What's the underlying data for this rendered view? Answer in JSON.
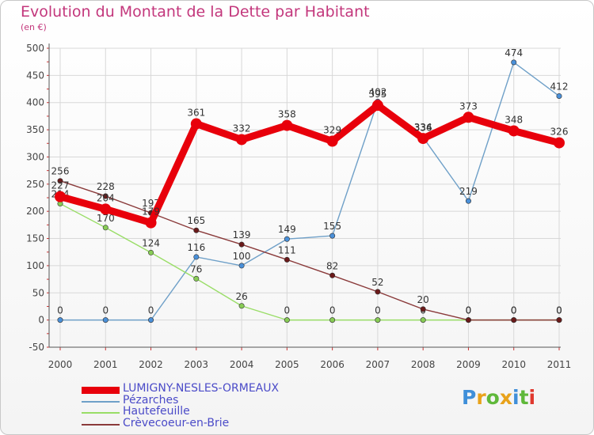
{
  "title": "Evolution du Montant de la Dette par Habitant",
  "unit": "(en €)",
  "logo": "Proxiti",
  "colors": {
    "title": "#c3377c",
    "legend_text": "#4b4bc8",
    "grid": "#d8d8d8",
    "axis": "#555555"
  },
  "chart_data": {
    "type": "line",
    "title": "Evolution du Montant de la Dette par Habitant",
    "ylabel": "(en €)",
    "xlabel": "",
    "categories": [
      "2000",
      "2001",
      "2002",
      "2003",
      "2004",
      "2005",
      "2006",
      "2007",
      "2008",
      "2009",
      "2010",
      "2011"
    ],
    "ylim": [
      -50,
      500
    ],
    "yticks": [
      -50,
      0,
      50,
      100,
      150,
      200,
      250,
      300,
      350,
      400,
      450,
      500
    ],
    "grid": true,
    "legend": "bottom-left",
    "series": [
      {
        "name": "LUMIGNY-NESLES-ORMEAUX",
        "color": "#e8000b",
        "marker": "#e8000b",
        "label_color": "#333333",
        "emphasis": true,
        "values": [
          227,
          204,
          179,
          361,
          332,
          358,
          329,
          395,
          334,
          373,
          348,
          326
        ],
        "labels": [
          "227",
          "204",
          "179",
          "361",
          "332",
          "358",
          "329",
          "395",
          "334",
          "373",
          "348",
          "326"
        ]
      },
      {
        "name": "Pézarches",
        "color": "#6fa0c8",
        "marker": "#4a90d9",
        "label_color": "#333333",
        "emphasis": false,
        "values": [
          0,
          0,
          0,
          116,
          100,
          149,
          155,
          402,
          336,
          219,
          474,
          412
        ],
        "labels": [
          "0",
          "0",
          "0",
          "116",
          "100",
          "149",
          "155",
          "402",
          "336",
          "219",
          "474",
          "412"
        ]
      },
      {
        "name": "Hautefeuille",
        "color": "#99dd66",
        "marker": "#88cc55",
        "label_color": "#333333",
        "emphasis": false,
        "values": [
          214,
          170,
          124,
          76,
          26,
          0,
          0,
          0,
          0,
          0,
          0,
          0
        ],
        "labels": [
          "214",
          "170",
          "124",
          "76",
          "26",
          "0",
          "0",
          "0",
          "0",
          "0",
          "0",
          "0"
        ]
      },
      {
        "name": "Crèvecoeur-en-Brie",
        "color": "#8a3a3a",
        "marker": "#6b1a1a",
        "label_color": "#333333",
        "emphasis": false,
        "values": [
          256,
          228,
          197,
          165,
          139,
          111,
          82,
          52,
          20,
          0,
          0,
          0
        ],
        "labels": [
          "256",
          "228",
          "197",
          "165",
          "139",
          "111",
          "82",
          "52",
          "20",
          "0",
          "0",
          "0"
        ]
      }
    ]
  }
}
